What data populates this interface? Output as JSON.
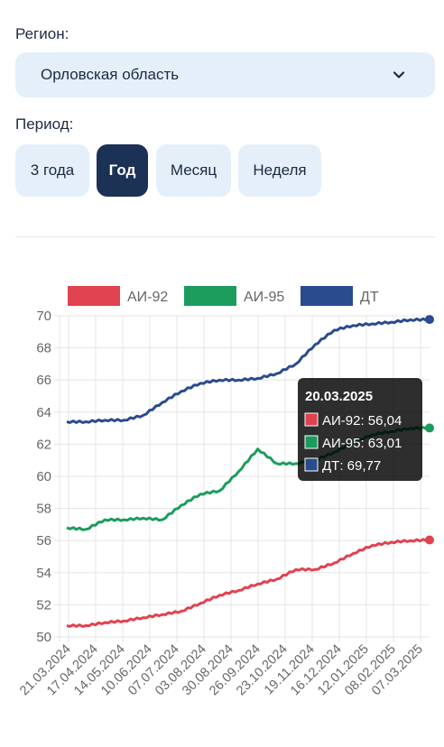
{
  "region": {
    "label": "Регион:",
    "value": "Орловская область"
  },
  "period": {
    "label": "Период:",
    "tabs": [
      {
        "label": "3 года",
        "active": false
      },
      {
        "label": "Год",
        "active": true
      },
      {
        "label": "Месяц",
        "active": false
      },
      {
        "label": "Неделя",
        "active": false
      }
    ]
  },
  "colors": {
    "ai92": "#e0424f",
    "ai95": "#1b9c5c",
    "dt": "#2a4b8d",
    "accent": "#1c3156",
    "pill": "#e4effa"
  },
  "tooltip": {
    "title": "20.03.2025",
    "lines": [
      "АИ-92: 56,04",
      "АИ-95: 63,01",
      "ДТ: 69,77"
    ]
  },
  "chart_data": {
    "type": "line",
    "ylim": [
      50,
      70
    ],
    "yticks": [
      50,
      52,
      54,
      56,
      58,
      60,
      62,
      64,
      66,
      68,
      70
    ],
    "x_tick_labels": [
      "21.03.2024",
      "17.04.2024",
      "14.05.2024",
      "10.06.2024",
      "07.07.2024",
      "03.08.2024",
      "30.08.2024",
      "26.09.2024",
      "23.10.2024",
      "19.11.2024",
      "16.12.2024",
      "12.01.2025",
      "08.02.2025",
      "07.03.2025"
    ],
    "grid": true,
    "legend": "top",
    "series": [
      {
        "name": "АИ-92",
        "color": "#e0424f",
        "values": [
          50.7,
          50.7,
          50.9,
          51.0,
          51.2,
          51.4,
          51.6,
          52.1,
          52.6,
          52.9,
          53.3,
          53.6,
          54.2,
          54.2,
          54.6,
          55.2,
          55.7,
          55.9,
          56.0,
          56.04
        ]
      },
      {
        "name": "АИ-95",
        "color": "#1b9c5c",
        "values": [
          56.8,
          56.7,
          57.3,
          57.3,
          57.4,
          57.3,
          58.2,
          58.9,
          59.1,
          60.3,
          61.7,
          60.8,
          60.8,
          61.0,
          61.5,
          62.1,
          62.6,
          62.8,
          63.0,
          63.01
        ]
      },
      {
        "name": "ДТ",
        "color": "#2a4b8d",
        "values": [
          63.4,
          63.4,
          63.5,
          63.5,
          63.8,
          64.6,
          65.3,
          65.8,
          66.0,
          66.0,
          66.1,
          66.4,
          67.0,
          68.2,
          69.1,
          69.4,
          69.5,
          69.6,
          69.75,
          69.77
        ]
      }
    ]
  }
}
